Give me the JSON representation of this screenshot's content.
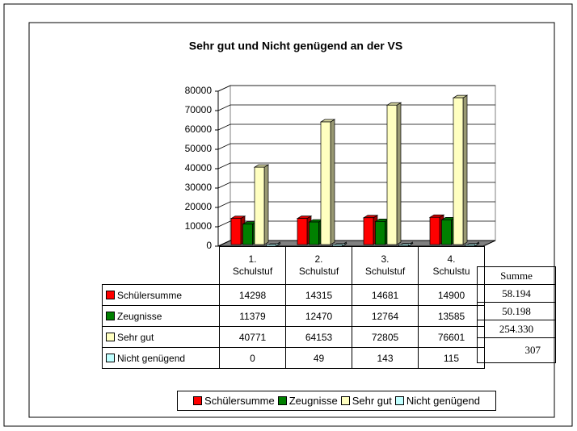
{
  "chart_data": {
    "type": "bar3d",
    "title": "Sehr gut und Nicht genügend an der VS",
    "categories": [
      "1.\nSchulstuf",
      "2.\nSchulstuf",
      "3.\nSchulstuf",
      "4.\nSchulstu"
    ],
    "series": [
      {
        "name": "Schülersumme",
        "color": "#ff0000",
        "values": [
          14298,
          14315,
          14681,
          14900
        ]
      },
      {
        "name": "Zeugnisse",
        "color": "#008000",
        "values": [
          11379,
          12470,
          12764,
          13585
        ]
      },
      {
        "name": "Sehr gut",
        "color": "#ffffc0",
        "values": [
          40771,
          64153,
          72805,
          76601
        ]
      },
      {
        "name": "Nicht genügend",
        "color": "#c0ffff",
        "values": [
          0,
          49,
          143,
          115
        ]
      }
    ],
    "ylim": [
      0,
      80000
    ],
    "yticks": [
      0,
      10000,
      20000,
      30000,
      40000,
      50000,
      60000,
      70000,
      80000
    ],
    "grid": true
  },
  "summe_table": {
    "header": "Summe",
    "values": [
      "58.194",
      "50.198",
      "254.330",
      "307"
    ]
  }
}
